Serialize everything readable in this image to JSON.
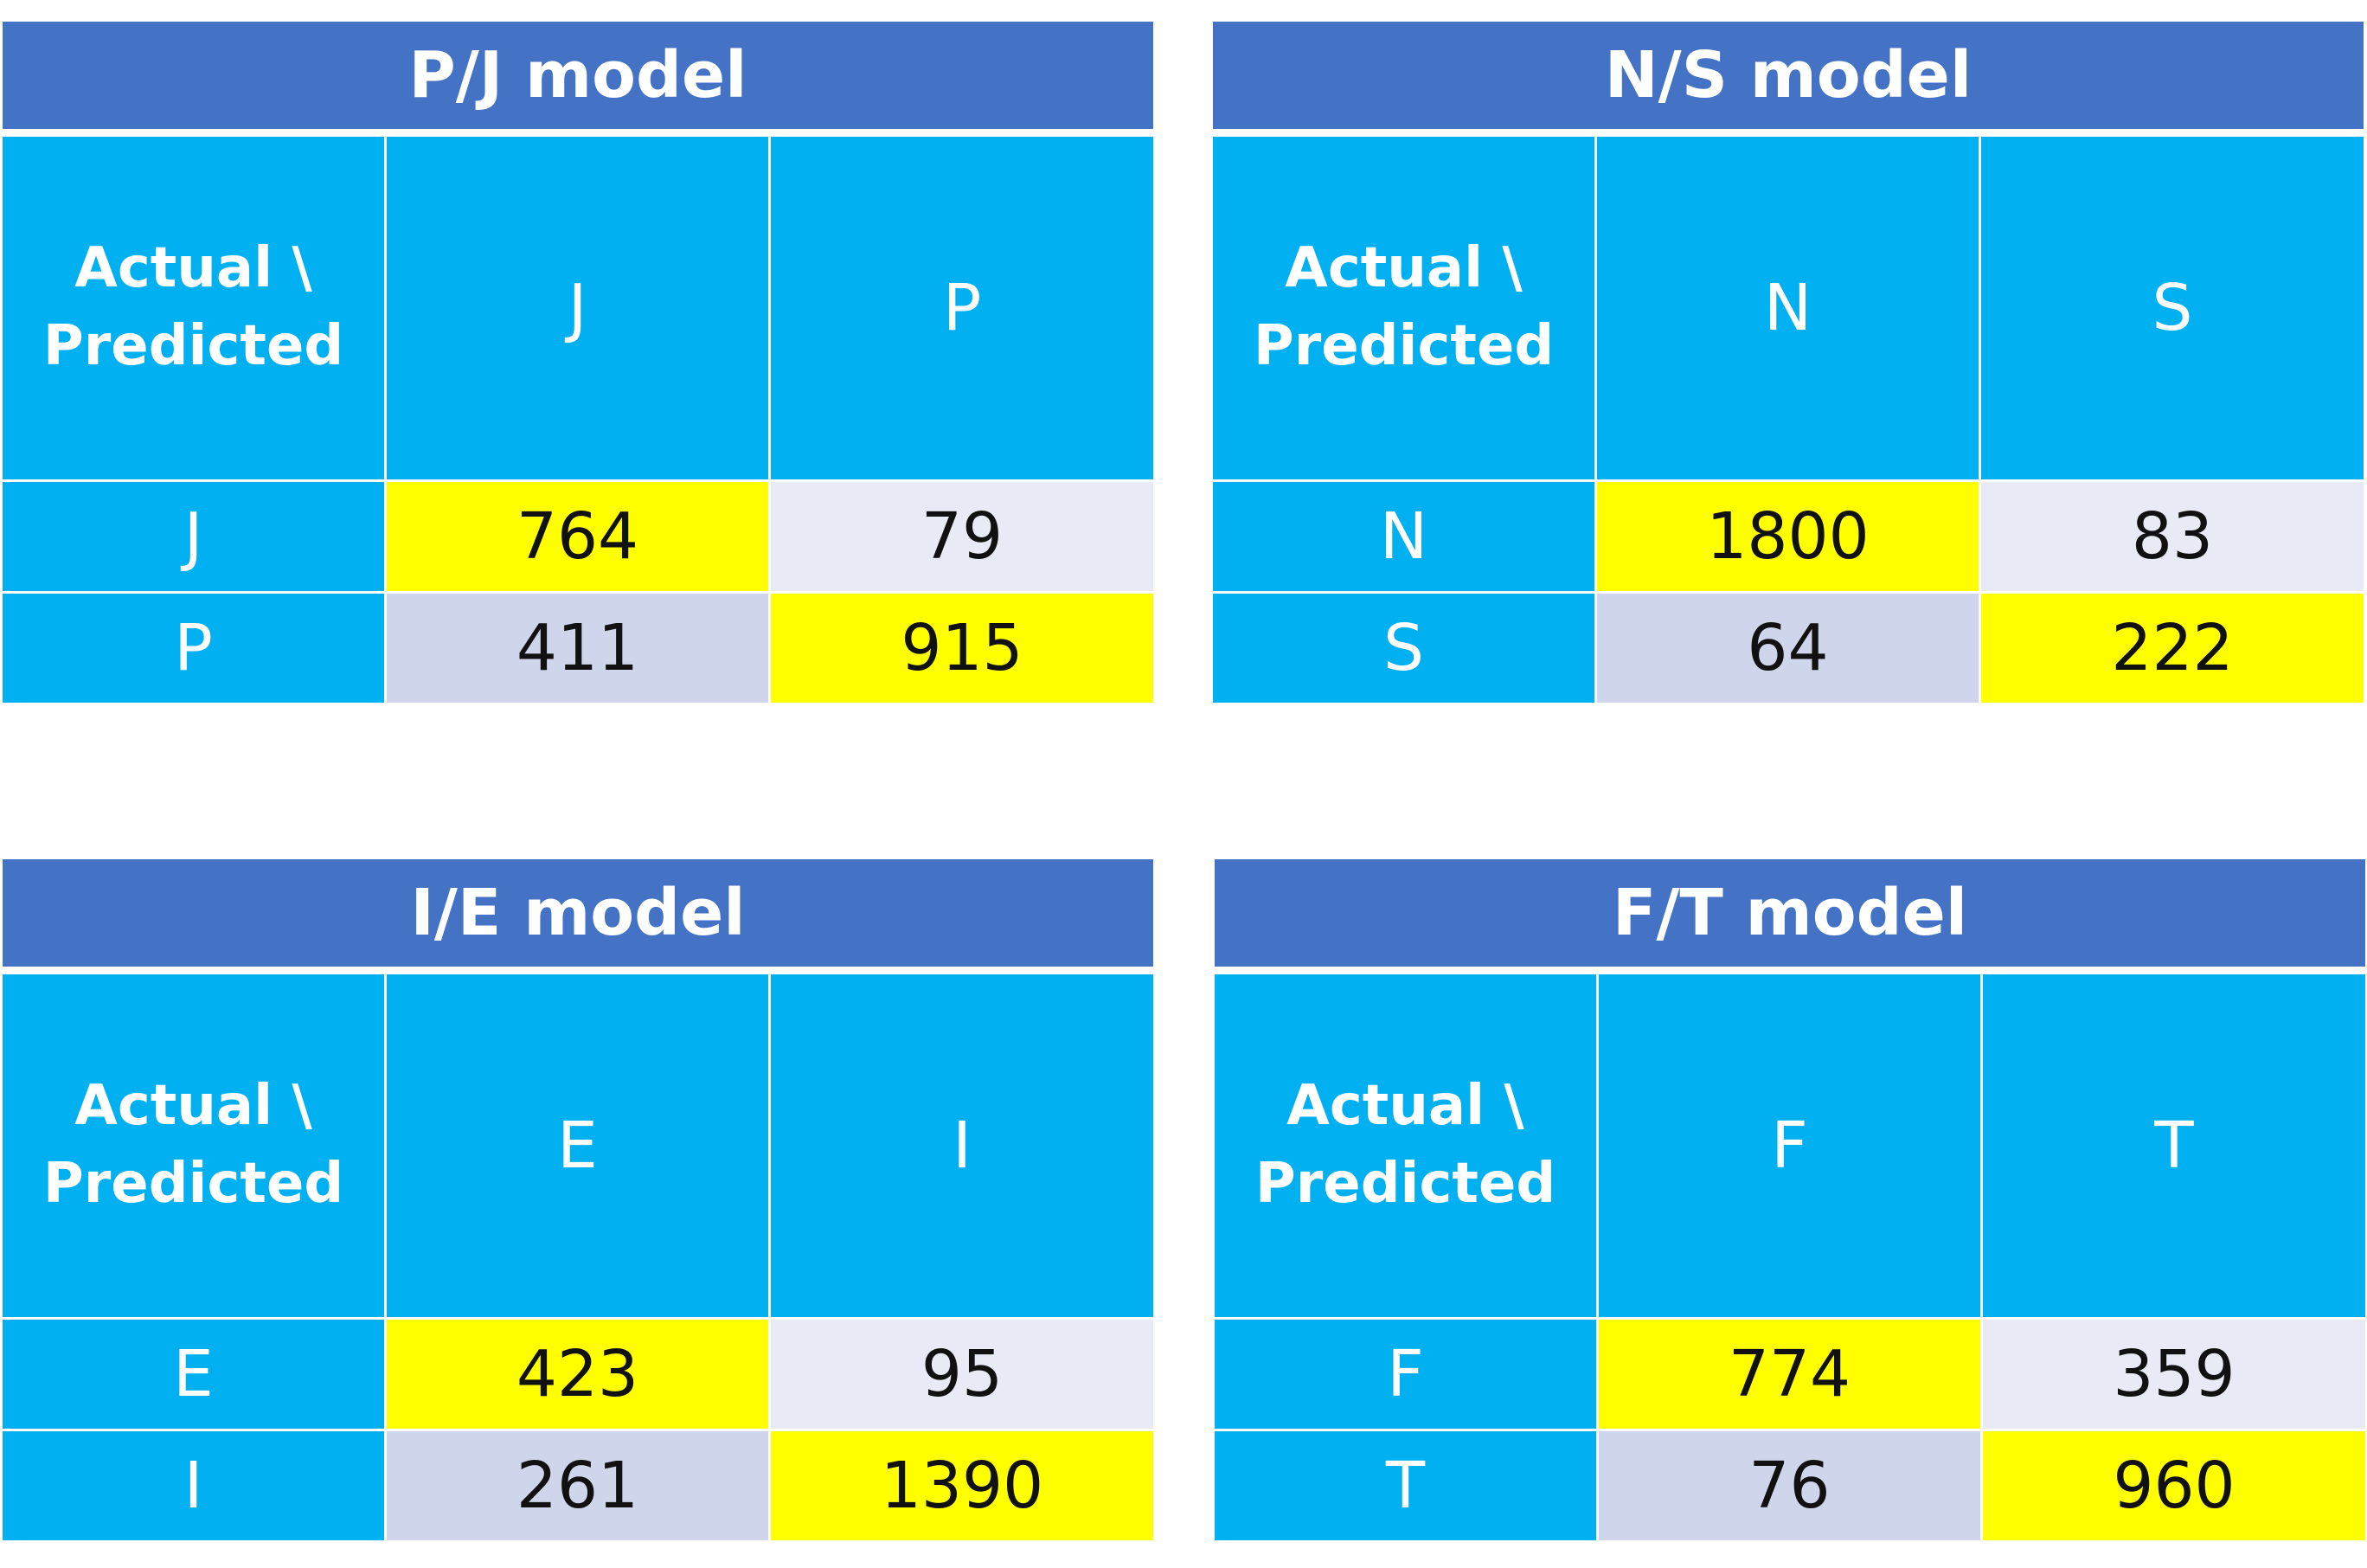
{
  "colors": {
    "title_bg": "#4472C4",
    "header_bg": "#00B0F0",
    "correct_bg": "#FFFF00",
    "off_diag_top_bg": "#E8EBF5",
    "off_diag_bottom_bg": "#CFD5EA"
  },
  "tables": [
    {
      "title": "P/J model",
      "corner": [
        "Actual \\",
        "Predicted"
      ],
      "cols": [
        "J",
        "P"
      ],
      "rows": [
        {
          "label": "J",
          "values": [
            "764",
            "79"
          ]
        },
        {
          "label": "P",
          "values": [
            "411",
            "915"
          ]
        }
      ]
    },
    {
      "title": "N/S model",
      "corner": [
        "Actual \\",
        "Predicted"
      ],
      "cols": [
        "N",
        "S"
      ],
      "rows": [
        {
          "label": "N",
          "values": [
            "1800",
            "83"
          ]
        },
        {
          "label": "S",
          "values": [
            "64",
            "222"
          ]
        }
      ]
    },
    {
      "title": "I/E model",
      "corner": [
        "Actual \\",
        "Predicted"
      ],
      "cols": [
        "E",
        "I"
      ],
      "rows": [
        {
          "label": "E",
          "values": [
            "423",
            "95"
          ]
        },
        {
          "label": "I",
          "values": [
            "261",
            "1390"
          ]
        }
      ]
    },
    {
      "title": "F/T model",
      "corner": [
        "Actual \\",
        "Predicted"
      ],
      "cols": [
        "F",
        "T"
      ],
      "rows": [
        {
          "label": "F",
          "values": [
            "774",
            "359"
          ]
        },
        {
          "label": "T",
          "values": [
            "76",
            "960"
          ]
        }
      ]
    }
  ]
}
